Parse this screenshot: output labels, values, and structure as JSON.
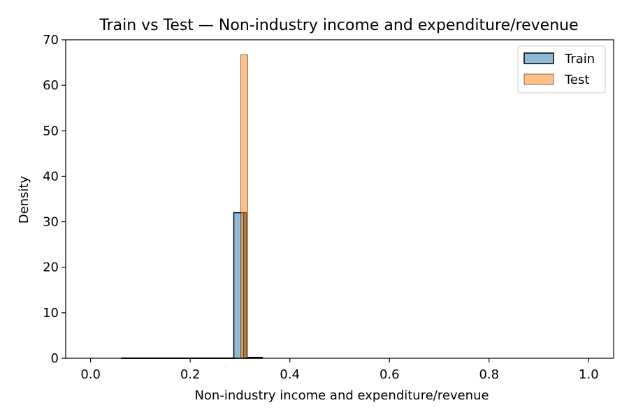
{
  "chart_data": {
    "type": "bar",
    "title": "Train vs Test —  Non-industry income and expenditure/revenue",
    "xlabel": "Non-industry income and expenditure/revenue",
    "ylabel": "Density",
    "xlim": [
      -0.05,
      1.05
    ],
    "ylim": [
      0,
      70
    ],
    "x_ticks": [
      "0.0",
      "0.2",
      "0.4",
      "0.6",
      "0.8",
      "1.0"
    ],
    "x_tick_values": [
      0.0,
      0.2,
      0.4,
      0.6,
      0.8,
      1.0
    ],
    "y_ticks": [
      "0",
      "10",
      "20",
      "30",
      "40",
      "50",
      "60",
      "70"
    ],
    "y_tick_values": [
      0,
      10,
      20,
      30,
      40,
      50,
      60,
      70
    ],
    "grid": false,
    "legend_position": "top-right",
    "series": [
      {
        "name": "Train",
        "color": "#1f77b4",
        "bins": [
          {
            "x0": 0.0625,
            "x1": 0.2875,
            "density": 0.05
          },
          {
            "x0": 0.2875,
            "x1": 0.3075,
            "density": 32
          },
          {
            "x0": 0.3075,
            "x1": 0.3125,
            "density": 32
          },
          {
            "x0": 0.3125,
            "x1": 0.3445,
            "density": 0.2
          }
        ]
      },
      {
        "name": "Test",
        "color": "#ff7f0e",
        "bins": [
          {
            "x0": 0.3015,
            "x1": 0.3155,
            "density": 66.7
          }
        ]
      }
    ]
  }
}
